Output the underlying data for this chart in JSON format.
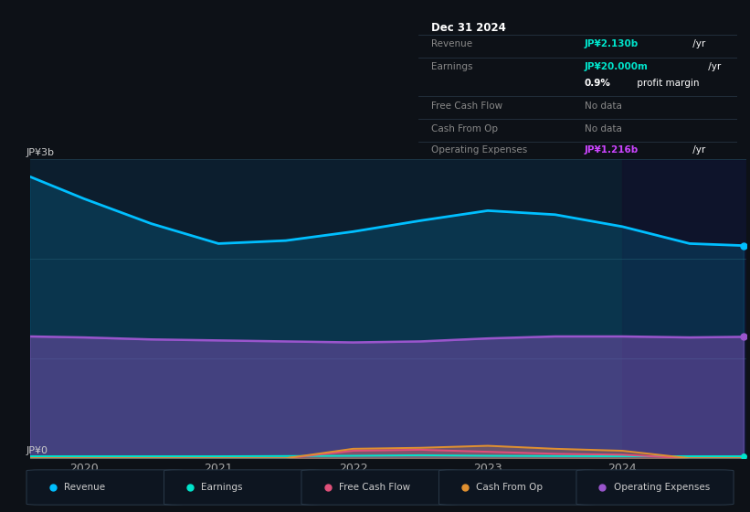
{
  "bg_color": "#0d1117",
  "chart_bg": "#0c1e2e",
  "grid_color": "#1e3a4a",
  "ylabel": "JP¥3b",
  "y0label": "JP¥0",
  "ylim": [
    0,
    3.0
  ],
  "years": [
    2019.6,
    2020.0,
    2020.5,
    2021.0,
    2021.5,
    2022.0,
    2022.5,
    2023.0,
    2023.5,
    2024.0,
    2024.5,
    2024.9
  ],
  "revenue": [
    2.82,
    2.6,
    2.35,
    2.15,
    2.18,
    2.27,
    2.38,
    2.48,
    2.44,
    2.32,
    2.15,
    2.13
  ],
  "operating_expenses": [
    1.22,
    1.21,
    1.19,
    1.18,
    1.17,
    1.16,
    1.17,
    1.2,
    1.22,
    1.22,
    1.21,
    1.216
  ],
  "earnings": [
    0.02,
    0.02,
    0.02,
    0.02,
    0.022,
    0.025,
    0.03,
    0.025,
    0.022,
    0.02,
    0.02,
    0.02
  ],
  "free_cash_flow": [
    0.0,
    0.0,
    0.0,
    0.0,
    0.0,
    0.075,
    0.085,
    0.065,
    0.045,
    0.035,
    0.0,
    0.0
  ],
  "cash_from_op": [
    0.0,
    0.0,
    0.0,
    0.0,
    0.0,
    0.095,
    0.105,
    0.125,
    0.095,
    0.075,
    0.0,
    0.0
  ],
  "revenue_color": "#00bfff",
  "earnings_color": "#00e5cc",
  "free_cash_flow_color": "#e0507a",
  "cash_from_op_color": "#e09030",
  "operating_expenses_color": "#9955cc",
  "shaded_start": 2024.0,
  "x_ticks": [
    2020,
    2021,
    2022,
    2023,
    2024
  ],
  "legend_labels": [
    "Revenue",
    "Earnings",
    "Free Cash Flow",
    "Cash From Op",
    "Operating Expenses"
  ],
  "info_box": {
    "date": "Dec 31 2024",
    "revenue_val": "JP¥2.130b",
    "revenue_unit": "/yr",
    "earnings_val": "JP¥20.000m",
    "earnings_unit": "/yr",
    "profit_margin_bold": "0.9%",
    "profit_margin_rest": " profit margin",
    "fcf_val": "No data",
    "cfop_val": "No data",
    "opex_val": "JP¥1.216b",
    "opex_unit": "/yr"
  }
}
